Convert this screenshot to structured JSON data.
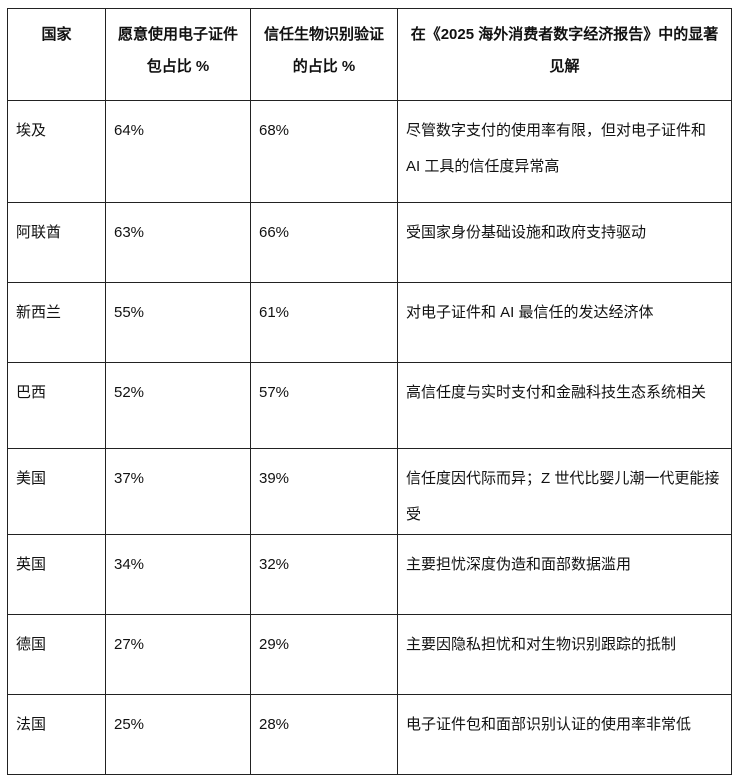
{
  "headers": [
    "国家",
    "愿意使用电子证件包占比 %",
    "信任生物识别验证的占比 %",
    "在《2025 海外消费者数字经济报告》中的显著见解"
  ],
  "rows": [
    [
      "埃及",
      "64%",
      "68%",
      "尽管数字支付的使用率有限，但对电子证件和 AI 工具的信任度异常高"
    ],
    [
      "阿联酋",
      "63%",
      "66%",
      "受国家身份基础设施和政府支持驱动"
    ],
    [
      "新西兰",
      "55%",
      "61%",
      "对电子证件和 AI 最信任的发达经济体"
    ],
    [
      "巴西",
      "52%",
      "57%",
      "高信任度与实时支付和金融科技生态系统相关"
    ],
    [
      "美国",
      "37%",
      "39%",
      "信任度因代际而异；Z 世代比婴儿潮一代更能接受"
    ],
    [
      "英国",
      "34%",
      "32%",
      "主要担忧深度伪造和面部数据滥用"
    ],
    [
      "德国",
      "27%",
      "29%",
      "主要因隐私担忧和对生物识别跟踪的抵制"
    ],
    [
      "法国",
      "25%",
      "28%",
      "电子证件包和面部识别认证的使用率非常低"
    ]
  ]
}
